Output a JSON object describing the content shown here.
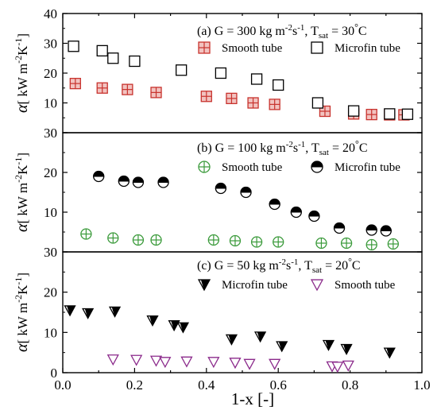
{
  "figure": {
    "xlabel": "1-x [-]",
    "xticks": [
      "0.0",
      "0.2",
      "0.4",
      "0.6",
      "0.8",
      "1.0"
    ]
  },
  "chart_data": [
    {
      "type": "scatter",
      "panel_title": "(a) G = 300 kg m-2s-1, Tsat = 30°C",
      "title_parts": {
        "pre": "(a) G = 300 kg m",
        "exp1": "-2",
        "mid": "s",
        "exp2": "-1",
        "post1": ", T",
        "sub": "sat",
        "post2": " = 30",
        "deg": "°",
        "post3": "C"
      },
      "ylabel": "α[ kW m-2K-1]",
      "ylim": [
        0,
        40
      ],
      "yticks": [
        "10",
        "20",
        "30",
        "40"
      ],
      "series": [
        {
          "name": "Smooth tube",
          "marker": "square-plus",
          "color": "#c8322d",
          "fill": "#f2c3c0",
          "x": [
            0.035,
            0.11,
            0.18,
            0.26,
            0.4,
            0.47,
            0.53,
            0.59,
            0.73,
            0.81,
            0.86,
            0.91,
            0.95
          ],
          "y": [
            16.5,
            15.0,
            14.5,
            13.5,
            12.2,
            11.5,
            10.0,
            9.5,
            7.2,
            6.3,
            6.1,
            6.0,
            6.0
          ]
        },
        {
          "name": "Microfin tube",
          "marker": "square-open",
          "color": "#000000",
          "fill": "#ffffff",
          "x": [
            0.03,
            0.11,
            0.14,
            0.2,
            0.33,
            0.44,
            0.54,
            0.6,
            0.71,
            0.81,
            0.91,
            0.96
          ],
          "y": [
            29.0,
            27.5,
            25.0,
            24.0,
            21.0,
            20.0,
            18.0,
            16.0,
            10.0,
            7.3,
            6.3,
            6.2
          ]
        }
      ]
    },
    {
      "type": "scatter",
      "panel_title": "(b) G = 100 kg m-2s-1, Tsat = 20°C",
      "title_parts": {
        "pre": "(b) G = 100 kg m",
        "exp1": "-2",
        "mid": "s",
        "exp2": "-1",
        "post1": ", T",
        "sub": "sat",
        "post2": " = 20",
        "deg": "°",
        "post3": "C"
      },
      "ylabel": "α[ kW m-2K-1]",
      "ylim": [
        0,
        30
      ],
      "yticks": [
        "10",
        "20",
        "30"
      ],
      "series": [
        {
          "name": "Smooth tube",
          "marker": "circle-plus",
          "color": "#3a9a3a",
          "fill": "#ffffff",
          "x": [
            0.065,
            0.14,
            0.21,
            0.26,
            0.42,
            0.48,
            0.54,
            0.6,
            0.72,
            0.79,
            0.86,
            0.92
          ],
          "y": [
            4.5,
            3.5,
            3.0,
            3.0,
            3.0,
            2.8,
            2.5,
            2.5,
            2.2,
            2.2,
            1.8,
            2.0
          ]
        },
        {
          "name": "Microfin tube",
          "marker": "circle-half",
          "color": "#000000",
          "fill": "#ffffff",
          "x": [
            0.1,
            0.17,
            0.21,
            0.28,
            0.44,
            0.51,
            0.59,
            0.65,
            0.7,
            0.77,
            0.86,
            0.9
          ],
          "y": [
            19.0,
            17.8,
            17.5,
            17.5,
            16.0,
            15.0,
            12.0,
            10.0,
            9.0,
            6.0,
            5.5,
            5.3
          ]
        }
      ]
    },
    {
      "type": "scatter",
      "panel_title": "(c) G = 50 kg m-2s-1, Tsat = 20°C",
      "title_parts": {
        "pre": "(c) G = 50 kg m",
        "exp1": "-2",
        "mid": "s",
        "exp2": "-1",
        "post1": ", T",
        "sub": "sat",
        "post2": " = 20",
        "deg": "°",
        "post3": "C"
      },
      "ylabel": "α[ kW m-2K-1]",
      "ylim": [
        0,
        30
      ],
      "yticks": [
        "0",
        "10",
        "20",
        "30"
      ],
      "series": [
        {
          "name": "Microfin tube",
          "marker": "triangle-down-filled",
          "color": "#000000",
          "fill": "#ffffff",
          "x": [
            0.02,
            0.07,
            0.145,
            0.25,
            0.31,
            0.335,
            0.47,
            0.55,
            0.61,
            0.74,
            0.79,
            0.91
          ],
          "y": [
            15.5,
            14.8,
            15.2,
            13.0,
            11.8,
            11.3,
            8.3,
            9.0,
            6.6,
            6.9,
            5.9,
            5.0
          ]
        },
        {
          "name": "Smooth tube",
          "marker": "triangle-down-open",
          "color": "#8b2a8b",
          "fill": "#ffffff",
          "x": [
            0.14,
            0.205,
            0.26,
            0.285,
            0.345,
            0.42,
            0.48,
            0.52,
            0.59,
            0.75,
            0.765,
            0.795
          ],
          "y": [
            3.3,
            3.2,
            3.0,
            2.7,
            2.8,
            2.7,
            2.5,
            2.2,
            2.2,
            1.6,
            1.5,
            1.8
          ]
        }
      ]
    }
  ]
}
